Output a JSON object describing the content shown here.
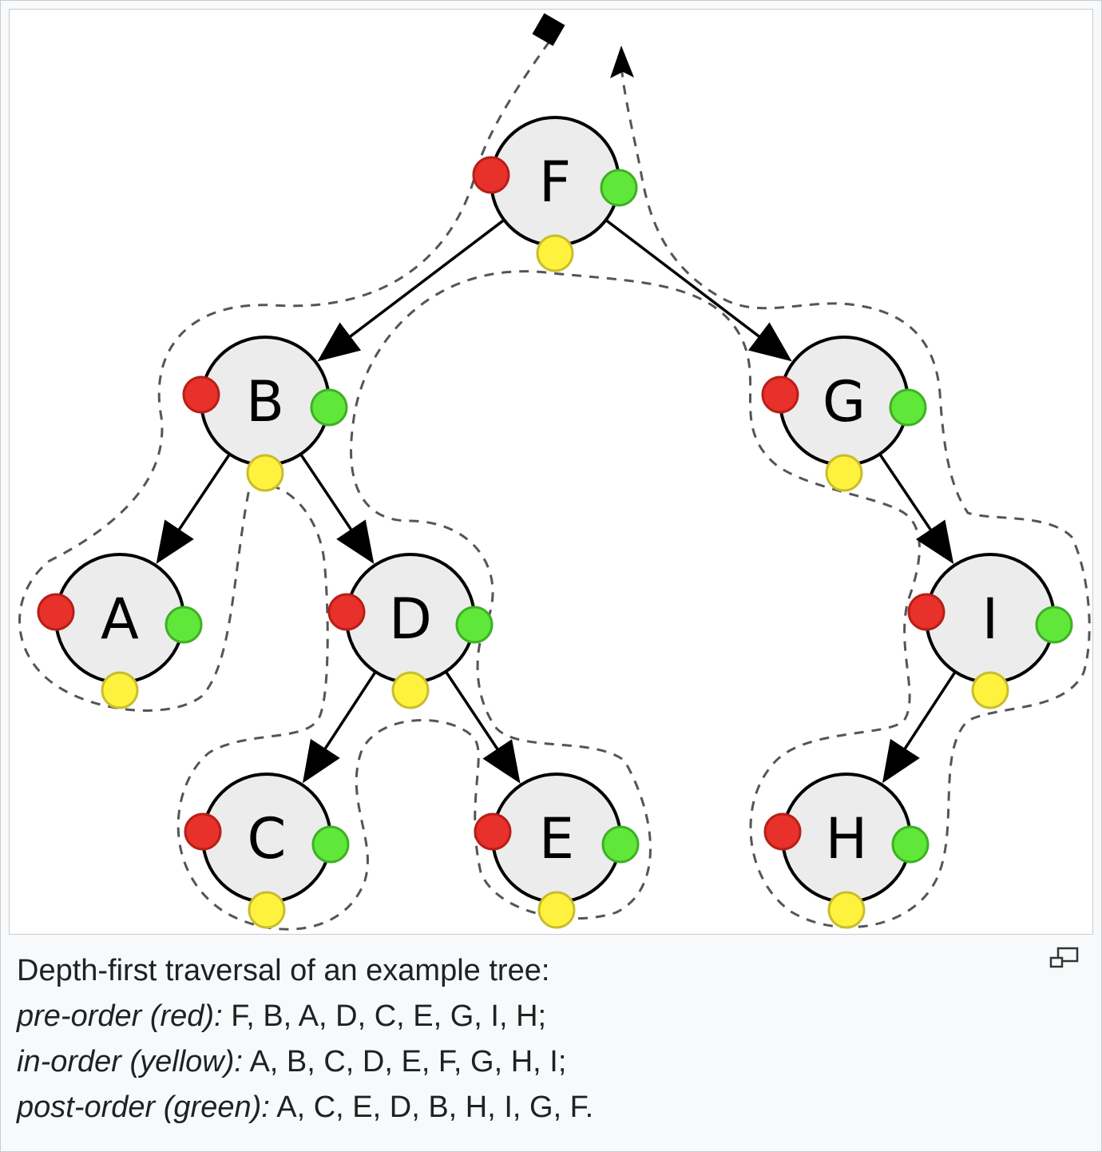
{
  "diagram": {
    "nodes": [
      {
        "id": "F",
        "label": "F"
      },
      {
        "id": "B",
        "label": "B"
      },
      {
        "id": "G",
        "label": "G"
      },
      {
        "id": "A",
        "label": "A"
      },
      {
        "id": "D",
        "label": "D"
      },
      {
        "id": "I",
        "label": "I"
      },
      {
        "id": "C",
        "label": "C"
      },
      {
        "id": "E",
        "label": "E"
      },
      {
        "id": "H",
        "label": "H"
      }
    ],
    "edges": [
      {
        "from": "F",
        "to": "B"
      },
      {
        "from": "F",
        "to": "G"
      },
      {
        "from": "B",
        "to": "A"
      },
      {
        "from": "B",
        "to": "D"
      },
      {
        "from": "D",
        "to": "C"
      },
      {
        "from": "D",
        "to": "E"
      },
      {
        "from": "G",
        "to": "I"
      },
      {
        "from": "I",
        "to": "H"
      }
    ],
    "colors": {
      "pre_order": "#e8312a",
      "in_order": "#fff23f",
      "post_order": "#5fe83a",
      "node_fill": "#ececec",
      "path": "#555555"
    }
  },
  "caption": {
    "title": "Depth-first traversal of an example tree:",
    "lines": [
      {
        "label": "pre-order (red):",
        "sequence": "F, B, A, D, C, E, G, I, H;"
      },
      {
        "label": "in-order (yellow):",
        "sequence": "A, B, C, D, E, F, G, H, I;"
      },
      {
        "label": "post-order (green):",
        "sequence": "A, C, E, D, B, H, I, G, F."
      }
    ]
  },
  "icons": {
    "magnify": "magnify-clip-icon"
  }
}
